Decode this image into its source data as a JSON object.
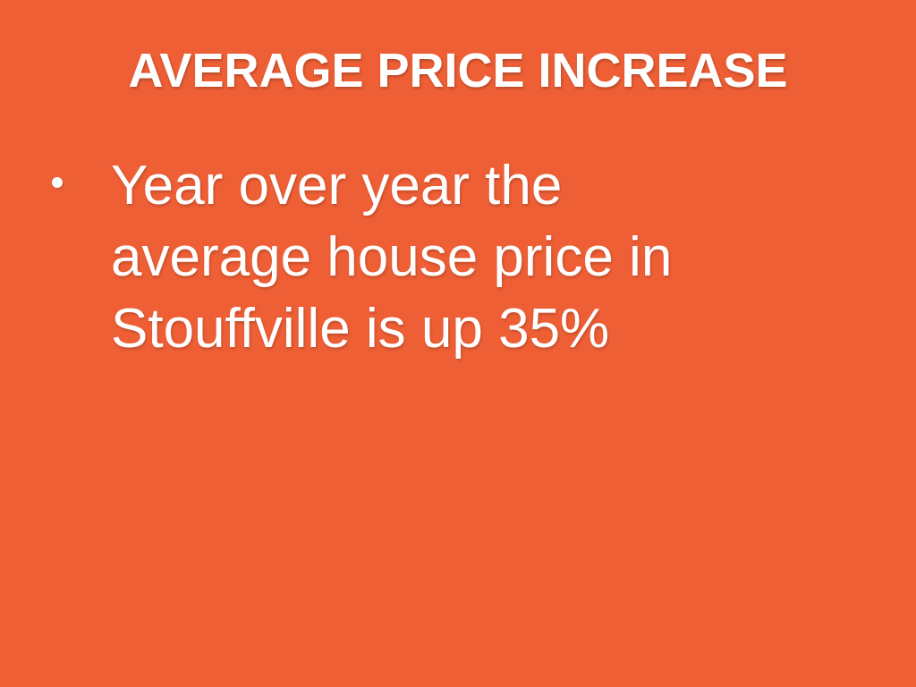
{
  "header": {
    "title": "AVERAGE PRICE INCREASE"
  },
  "bullets": [
    [
      "Year over year the",
      "average house price in",
      "Stouffville is up 35%"
    ]
  ]
}
